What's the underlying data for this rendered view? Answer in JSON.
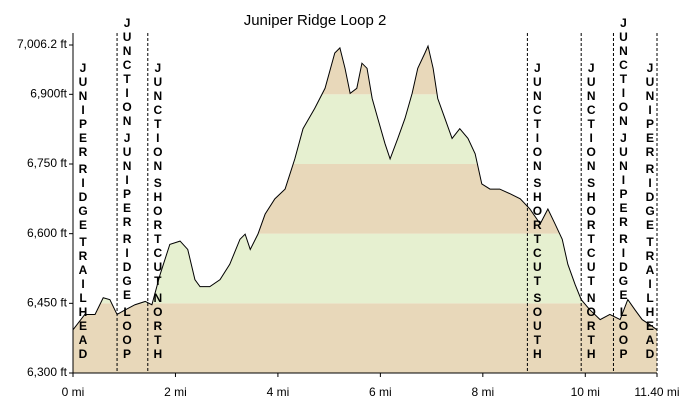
{
  "chart_data": {
    "type": "area",
    "title": "Juniper Ridge Loop 2",
    "x": [
      0,
      0.23,
      0.43,
      0.59,
      0.72,
      0.86,
      1.02,
      1.21,
      1.41,
      1.54,
      1.7,
      1.89,
      2.09,
      2.24,
      2.38,
      2.48,
      2.67,
      2.87,
      3.06,
      3.26,
      3.36,
      3.46,
      3.61,
      3.75,
      3.94,
      4.14,
      4.33,
      4.49,
      4.72,
      4.92,
      5.11,
      5.21,
      5.31,
      5.41,
      5.54,
      5.64,
      5.74,
      5.84,
      5.95,
      6.09,
      6.19,
      6.34,
      6.48,
      6.62,
      6.73,
      6.87,
      6.93,
      7.03,
      7.12,
      7.26,
      7.4,
      7.55,
      7.71,
      7.85,
      7.98,
      8.14,
      8.33,
      8.53,
      8.73,
      8.92,
      9.12,
      9.27,
      9.41,
      9.55,
      9.66,
      9.8,
      9.92,
      10.09,
      10.29,
      10.48,
      10.68,
      10.83,
      10.97,
      11.11,
      11.26,
      11.4
    ],
    "values": [
      6393,
      6426,
      6426,
      6462,
      6458,
      6426,
      6436,
      6447,
      6454,
      6447,
      6512,
      6577,
      6584,
      6566,
      6501,
      6486,
      6486,
      6501,
      6534,
      6588,
      6599,
      6566,
      6599,
      6642,
      6675,
      6696,
      6761,
      6826,
      6870,
      6913,
      6989,
      7000,
      6956,
      6902,
      6913,
      6967,
      6956,
      6891,
      6848,
      6794,
      6761,
      6805,
      6848,
      6902,
      6956,
      6989,
      7004,
      6956,
      6891,
      6848,
      6805,
      6826,
      6805,
      6772,
      6707,
      6696,
      6696,
      6686,
      6675,
      6653,
      6621,
      6653,
      6621,
      6588,
      6534,
      6491,
      6458,
      6436,
      6415,
      6426,
      6415,
      6458,
      6436,
      6415,
      6404,
      6393
    ],
    "color": "#000000",
    "band_colors": [
      "#e8d8ba",
      "#e6f0d0"
    ],
    "xlim": [
      0,
      11.4
    ],
    "xticks": [
      {
        "value": 0,
        "label": "0 mi"
      },
      {
        "value": 2,
        "label": "2 mi"
      },
      {
        "value": 4,
        "label": "4 mi"
      },
      {
        "value": 6,
        "label": "6 mi"
      },
      {
        "value": 8,
        "label": "8 mi"
      },
      {
        "value": 10,
        "label": "10 mi"
      },
      {
        "value": 11.4,
        "label": "11.40 mi"
      }
    ],
    "ylim": [
      6300,
      7006.2
    ],
    "yticks": [
      {
        "value": 6300,
        "label": "6,300 ft"
      },
      {
        "value": 6450,
        "label": "6,450 ft"
      },
      {
        "value": 6600,
        "label": "6,600 ft"
      },
      {
        "value": 6750,
        "label": "6,750 ft"
      },
      {
        "value": 6900,
        "label": "6,900ft"
      },
      {
        "value": 7006.2,
        "label": "7,006.2 ft"
      }
    ],
    "markers": [
      {
        "x": 0,
        "label": "JUNIPER RIDGE TRAILHEAD"
      },
      {
        "x": 0.86,
        "label": "JUNCTION JUNIPER RIDGE LOOP"
      },
      {
        "x": 1.46,
        "label": "JUNCTION SHORTCUT NORTH"
      },
      {
        "x": 8.87,
        "label": "JUNCTION SHORTCUT SOUTH"
      },
      {
        "x": 9.92,
        "label": "JUNCTION SHORTCUT NORTH"
      },
      {
        "x": 10.55,
        "label": "JUNCTION JUNIPER RIDGE LOOP"
      },
      {
        "x": 11.4,
        "label": "JUNIPER RIDGE TRAILHEAD"
      }
    ]
  }
}
